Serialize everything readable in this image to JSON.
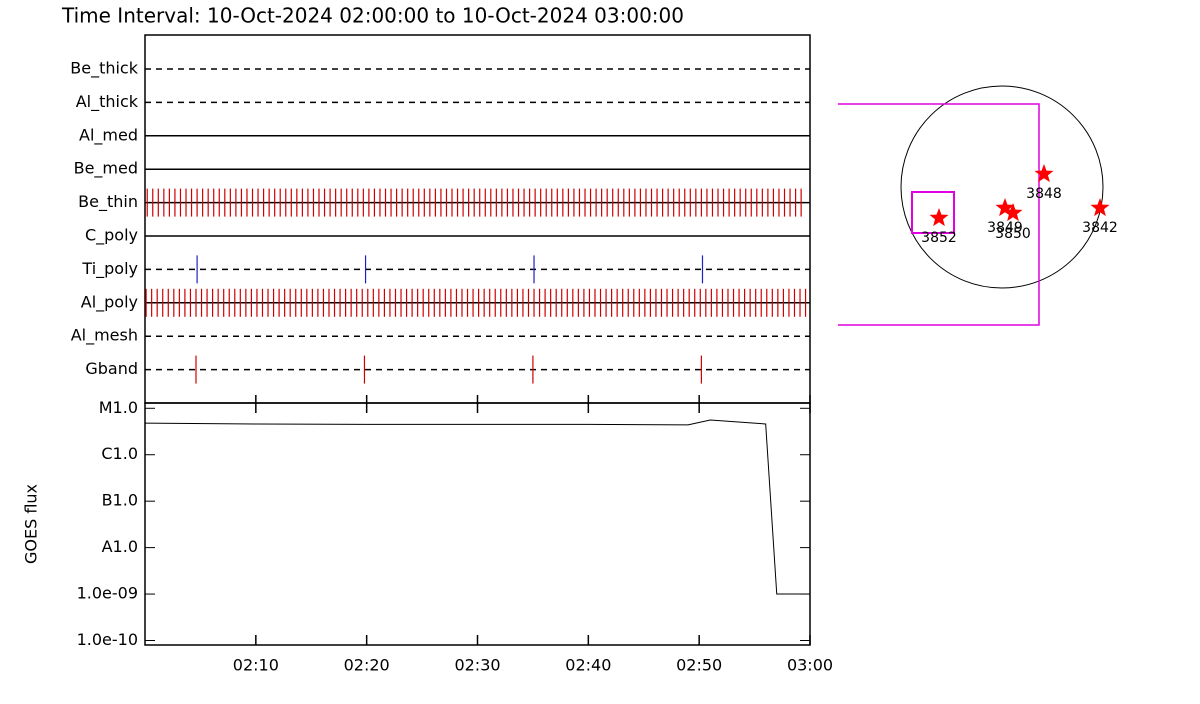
{
  "title": "Time Interval: 10-Oct-2024 02:00:00 to 10-Oct-2024 03:00:00",
  "timeline": {
    "type": "event-timeline",
    "xlim": [
      0,
      60
    ],
    "filters": [
      {
        "name": "Be_thick",
        "style": "dashed",
        "events": []
      },
      {
        "name": "Al_thick",
        "style": "dashed",
        "events": []
      },
      {
        "name": "Al_med",
        "style": "solid",
        "events": []
      },
      {
        "name": "Be_med",
        "style": "solid",
        "events": []
      },
      {
        "name": "Be_thin",
        "style": "solid",
        "color": "#d00000",
        "events": [
          0.2,
          0.7,
          1.2,
          1.7,
          2.2,
          2.7,
          3.2,
          3.7,
          4.2,
          4.7,
          5.2,
          5.7,
          6.2,
          6.7,
          7.2,
          7.7,
          8.2,
          8.7,
          9.2,
          9.7,
          10.2,
          10.7,
          11.2,
          11.7,
          12.2,
          12.7,
          13.2,
          13.7,
          14.2,
          14.7,
          15.2,
          15.7,
          16.2,
          16.7,
          17.2,
          17.7,
          18.2,
          18.7,
          19.2,
          19.7,
          20.2,
          20.7,
          21.2,
          21.7,
          22.2,
          22.7,
          23.2,
          23.7,
          24.2,
          24.7,
          25.2,
          25.7,
          26.2,
          26.7,
          27.2,
          27.7,
          28.2,
          28.7,
          29.2,
          29.7,
          30.2,
          30.7,
          31.2,
          31.7,
          32.2,
          32.7,
          33.2,
          33.7,
          34.2,
          34.7,
          35.2,
          35.7,
          36.2,
          36.7,
          37.2,
          37.7,
          38.2,
          38.7,
          39.2,
          39.7,
          40.2,
          40.7,
          41.2,
          41.7,
          42.2,
          42.7,
          43.2,
          43.7,
          44.2,
          44.7,
          45.2,
          45.7,
          46.2,
          46.7,
          47.2,
          47.7,
          48.2,
          48.7,
          49.2,
          49.7,
          50.2,
          50.7,
          51.2,
          51.7,
          52.2,
          52.7,
          53.2,
          53.7,
          54.2,
          54.7,
          55.2,
          55.7,
          56.2,
          56.7,
          57.2,
          57.7,
          58.2,
          58.7,
          59.2
        ]
      },
      {
        "name": "C_poly",
        "style": "solid",
        "events": []
      },
      {
        "name": "Ti_poly",
        "style": "dashed",
        "color": "#2020c0",
        "events": [
          4.7,
          19.9,
          35.1,
          50.3
        ]
      },
      {
        "name": "Al_poly",
        "style": "solid",
        "color": "#d00000",
        "events": [
          0.1,
          0.6,
          1.1,
          1.6,
          2.1,
          2.6,
          3.1,
          3.6,
          4.1,
          4.6,
          5.1,
          5.6,
          6.1,
          6.6,
          7.1,
          7.6,
          8.1,
          8.6,
          9.1,
          9.6,
          10.1,
          10.6,
          11.1,
          11.6,
          12.1,
          12.6,
          13.1,
          13.6,
          14.1,
          14.6,
          15.1,
          15.6,
          16.1,
          16.6,
          17.1,
          17.6,
          18.1,
          18.6,
          19.1,
          19.6,
          20.1,
          20.6,
          21.1,
          21.6,
          22.1,
          22.6,
          23.1,
          23.6,
          24.1,
          24.6,
          25.1,
          25.6,
          26.1,
          26.6,
          27.1,
          27.6,
          28.1,
          28.6,
          29.1,
          29.6,
          30.1,
          30.6,
          31.1,
          31.6,
          32.1,
          32.6,
          33.1,
          33.6,
          34.1,
          34.6,
          35.1,
          35.6,
          36.1,
          36.6,
          37.1,
          37.6,
          38.1,
          38.6,
          39.1,
          39.6,
          40.1,
          40.6,
          41.1,
          41.6,
          42.1,
          42.6,
          43.1,
          43.6,
          44.1,
          44.6,
          45.1,
          45.6,
          46.1,
          46.6,
          47.1,
          47.6,
          48.1,
          48.6,
          49.1,
          49.6,
          50.1,
          50.6,
          51.1,
          51.6,
          52.1,
          52.6,
          53.1,
          53.6,
          54.1,
          54.6,
          55.1,
          55.6,
          56.1,
          56.6,
          57.1,
          57.6,
          58.1,
          58.6,
          59.1,
          59.6
        ]
      },
      {
        "name": "Al_mesh",
        "style": "dashed",
        "events": []
      },
      {
        "name": "Gband",
        "style": "dashed",
        "color": "#d00000",
        "events": [
          4.6,
          19.8,
          35.0,
          50.2
        ]
      }
    ]
  },
  "chart_data": {
    "type": "line",
    "y_label": "GOES flux",
    "log_scale": true,
    "x": [
      0,
      10,
      20,
      30,
      40,
      49,
      51,
      56,
      57,
      60
    ],
    "series": [
      {
        "name": "GOES",
        "color": "#000000",
        "values": [
          4.8e-06,
          4.6e-06,
          4.5e-06,
          4.5e-06,
          4.5e-06,
          4.4e-06,
          5.6e-06,
          4.6e-06,
          1e-09,
          1e-09
        ]
      }
    ],
    "xlim": [
      0,
      60
    ],
    "xticks": [
      {
        "value": 10,
        "label": "02:10"
      },
      {
        "value": 20,
        "label": "02:20"
      },
      {
        "value": 30,
        "label": "02:30"
      },
      {
        "value": 40,
        "label": "02:40"
      },
      {
        "value": 50,
        "label": "02:50"
      },
      {
        "value": 60,
        "label": "03:00"
      }
    ],
    "ylim": [
      8e-11,
      1.3e-05
    ],
    "yticks": [
      {
        "value": 1e-05,
        "label": "M1.0"
      },
      {
        "value": 1e-06,
        "label": "C1.0"
      },
      {
        "value": 1e-07,
        "label": "B1.0"
      },
      {
        "value": 1e-08,
        "label": "A1.0"
      },
      {
        "value": 1e-09,
        "label": "1.0e-09"
      },
      {
        "value": 1e-10,
        "label": "1.0e-10"
      }
    ]
  },
  "sun_map": {
    "regions": [
      {
        "label": "3852"
      },
      {
        "label": "3849"
      },
      {
        "label": "3850"
      },
      {
        "label": "3848"
      },
      {
        "label": "3842"
      }
    ]
  }
}
